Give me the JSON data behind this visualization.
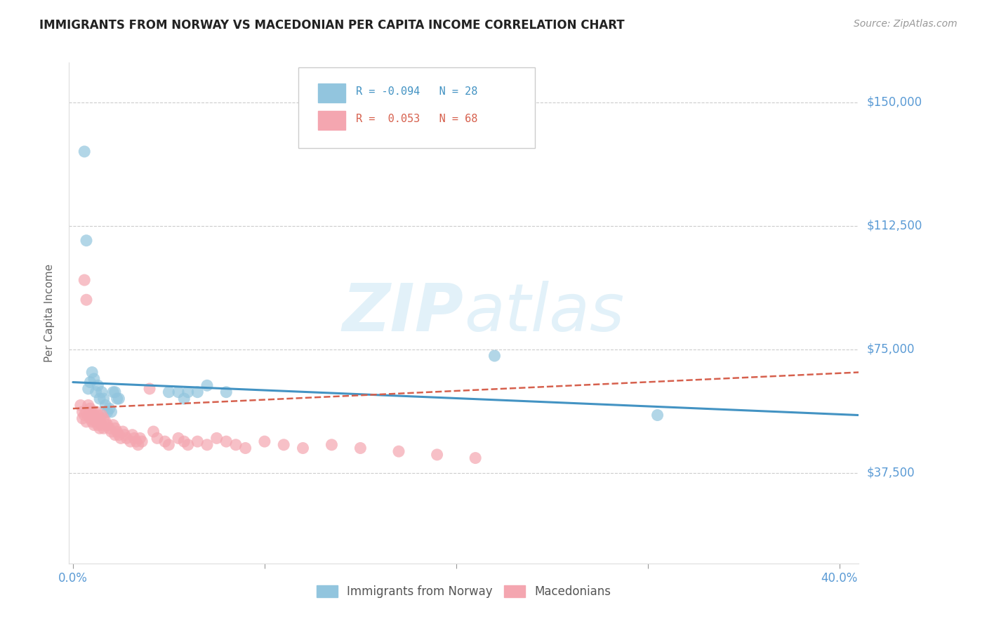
{
  "title": "IMMIGRANTS FROM NORWAY VS MACEDONIAN PER CAPITA INCOME CORRELATION CHART",
  "source": "Source: ZipAtlas.com",
  "ylabel": "Per Capita Income",
  "ytick_labels": [
    "$37,500",
    "$75,000",
    "$112,500",
    "$150,000"
  ],
  "ytick_values": [
    37500,
    75000,
    112500,
    150000
  ],
  "ymin": 10000,
  "ymax": 162000,
  "xmin": -0.002,
  "xmax": 0.41,
  "legend_blue_r": "-0.094",
  "legend_blue_n": "28",
  "legend_pink_r": "0.053",
  "legend_pink_n": "68",
  "legend_label_blue": "Immigrants from Norway",
  "legend_label_pink": "Macedonians",
  "blue_color": "#92C5DE",
  "pink_color": "#F4A6B0",
  "blue_line_color": "#4393C3",
  "pink_line_color": "#D6604D",
  "axis_label_color": "#5b9bd5",
  "blue_x": [
    0.006,
    0.007,
    0.008,
    0.009,
    0.01,
    0.011,
    0.012,
    0.013,
    0.014,
    0.015,
    0.016,
    0.017,
    0.018,
    0.019,
    0.02,
    0.021,
    0.022,
    0.023,
    0.024,
    0.05,
    0.055,
    0.058,
    0.06,
    0.065,
    0.07,
    0.08,
    0.22,
    0.305
  ],
  "blue_y": [
    135000,
    108000,
    63000,
    65000,
    68000,
    66000,
    62000,
    64000,
    60000,
    62000,
    60000,
    58000,
    56000,
    57000,
    56000,
    62000,
    62000,
    60000,
    60000,
    62000,
    62000,
    60000,
    62000,
    62000,
    64000,
    62000,
    73000,
    55000
  ],
  "pink_x": [
    0.004,
    0.005,
    0.005,
    0.006,
    0.006,
    0.007,
    0.007,
    0.007,
    0.008,
    0.008,
    0.009,
    0.009,
    0.01,
    0.01,
    0.011,
    0.011,
    0.012,
    0.012,
    0.013,
    0.013,
    0.014,
    0.014,
    0.015,
    0.015,
    0.016,
    0.016,
    0.017,
    0.018,
    0.019,
    0.02,
    0.021,
    0.022,
    0.022,
    0.023,
    0.024,
    0.025,
    0.026,
    0.027,
    0.028,
    0.03,
    0.031,
    0.032,
    0.033,
    0.034,
    0.035,
    0.036,
    0.04,
    0.042,
    0.044,
    0.048,
    0.05,
    0.055,
    0.058,
    0.06,
    0.065,
    0.07,
    0.075,
    0.08,
    0.085,
    0.09,
    0.1,
    0.11,
    0.12,
    0.135,
    0.15,
    0.17,
    0.19,
    0.21
  ],
  "pink_y": [
    58000,
    56000,
    54000,
    96000,
    55000,
    90000,
    56000,
    53000,
    58000,
    55000,
    57000,
    54000,
    56000,
    53000,
    55000,
    52000,
    56000,
    53000,
    55000,
    52000,
    54000,
    51000,
    55000,
    52000,
    54000,
    51000,
    53000,
    52000,
    51000,
    50000,
    52000,
    51000,
    49000,
    50000,
    49000,
    48000,
    50000,
    49000,
    48000,
    47000,
    49000,
    48000,
    47000,
    46000,
    48000,
    47000,
    63000,
    50000,
    48000,
    47000,
    46000,
    48000,
    47000,
    46000,
    47000,
    46000,
    48000,
    47000,
    46000,
    45000,
    47000,
    46000,
    45000,
    46000,
    45000,
    44000,
    43000,
    42000
  ],
  "blue_trend_x": [
    0.0,
    0.41
  ],
  "blue_trend_y": [
    65000,
    55000
  ],
  "pink_trend_x": [
    0.0,
    0.41
  ],
  "pink_trend_y": [
    57000,
    68000
  ]
}
